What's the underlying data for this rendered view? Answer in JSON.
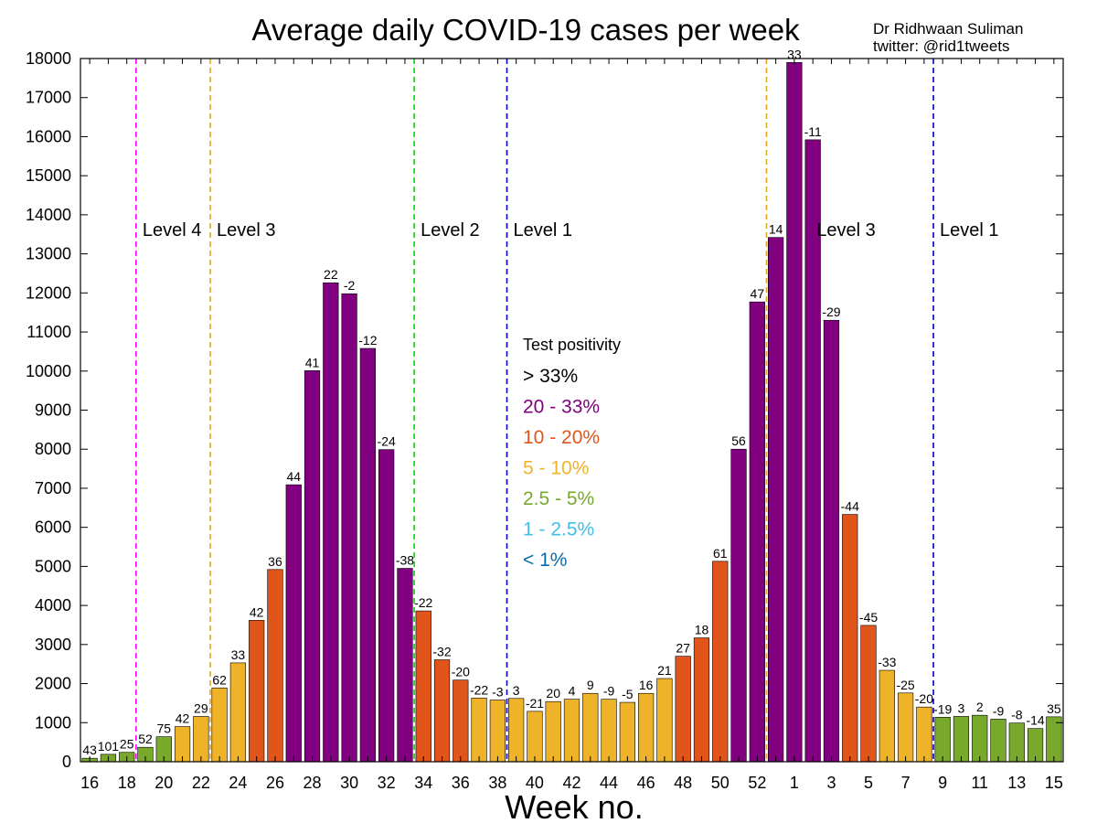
{
  "chart_data": {
    "type": "bar",
    "title": "Average daily COVID-19 cases per week",
    "credit_line1": "Dr Ridhwaan Suliman",
    "credit_line2": "twitter: @rid1tweets",
    "xlabel": "Week no.",
    "ylabel": "",
    "ylim": [
      0,
      18000
    ],
    "yticks": [
      0,
      1000,
      2000,
      3000,
      4000,
      5000,
      6000,
      7000,
      8000,
      9000,
      10000,
      11000,
      12000,
      13000,
      14000,
      15000,
      16000,
      17000,
      18000
    ],
    "grid": false,
    "categories": [
      "16",
      "17",
      "18",
      "19",
      "20",
      "21",
      "22",
      "23",
      "24",
      "25",
      "26",
      "27",
      "28",
      "29",
      "30",
      "31",
      "32",
      "33",
      "34",
      "35",
      "36",
      "37",
      "38",
      "39",
      "40",
      "41",
      "42",
      "43",
      "44",
      "45",
      "46",
      "47",
      "48",
      "49",
      "50",
      "51",
      "52",
      "53",
      "1",
      "2",
      "3",
      "4",
      "5",
      "6",
      "7",
      "8",
      "9",
      "10",
      "11",
      "12",
      "13",
      "14",
      "15"
    ],
    "xtick_labels": [
      "16",
      "18",
      "20",
      "22",
      "24",
      "26",
      "28",
      "30",
      "32",
      "34",
      "36",
      "38",
      "40",
      "42",
      "44",
      "46",
      "48",
      "50",
      "52",
      "1",
      "3",
      "5",
      "7",
      "9",
      "11",
      "13",
      "15"
    ],
    "values": [
      90,
      190,
      240,
      370,
      640,
      900,
      1160,
      1890,
      2530,
      3620,
      4920,
      7090,
      10010,
      12260,
      11980,
      10580,
      7990,
      4950,
      3860,
      2610,
      2090,
      1630,
      1580,
      1620,
      1290,
      1540,
      1600,
      1750,
      1600,
      1520,
      1750,
      2130,
      2700,
      3170,
      5130,
      8000,
      11770,
      13420,
      17900,
      15920,
      11300,
      6330,
      3490,
      2340,
      1760,
      1400,
      1140,
      1160,
      1190,
      1090,
      990,
      850,
      1150
    ],
    "pct_labels": [
      "43",
      "101",
      "25",
      "52",
      "75",
      "42",
      "29",
      "62",
      "33",
      "42",
      "36",
      "44",
      "41",
      "22",
      "-2",
      "-12",
      "-24",
      "-38",
      "-22",
      "-32",
      "-20",
      "-22",
      "-3",
      "3",
      "-21",
      "20",
      "4",
      "9",
      "-9",
      "-5",
      "16",
      "21",
      "27",
      "18",
      "61",
      "56",
      "47",
      "14",
      "33",
      "-11",
      "-29",
      "-44",
      "-45",
      "-33",
      "-25",
      "-20",
      "-19",
      "3",
      "2",
      "-9",
      "-8",
      "-14",
      "35"
    ],
    "bar_categories": [
      "2.5-5",
      "2.5-5",
      "2.5-5",
      "2.5-5",
      "2.5-5",
      "5-10",
      "5-10",
      "5-10",
      "5-10",
      "10-20",
      "10-20",
      "20-33",
      "20-33",
      "20-33",
      "20-33",
      "20-33",
      "20-33",
      "20-33",
      "10-20",
      "10-20",
      "10-20",
      "5-10",
      "5-10",
      "5-10",
      "5-10",
      "5-10",
      "5-10",
      "5-10",
      "5-10",
      "5-10",
      "5-10",
      "5-10",
      "10-20",
      "10-20",
      "10-20",
      "20-33",
      "20-33",
      "20-33",
      "20-33",
      "20-33",
      "20-33",
      "10-20",
      "10-20",
      "5-10",
      "5-10",
      "5-10",
      "2.5-5",
      "2.5-5",
      "2.5-5",
      "2.5-5",
      "2.5-5",
      "2.5-5",
      "2.5-5"
    ],
    "category_colors": {
      "gt-33": "#000000",
      "20-33": "#800080",
      "10-20": "#e0561a",
      "5-10": "#efb32a",
      "2.5-5": "#78a92d",
      "1-2.5": "#40c0e8",
      "lt-1": "#0a6aa8"
    },
    "level_lines": [
      {
        "after_index": 2.5,
        "label": "Level 4",
        "color": "#ff00ff"
      },
      {
        "after_index": 6.5,
        "label": "Level 3",
        "color": "#e6a520"
      },
      {
        "after_index": 17.5,
        "label": "Level 2",
        "color": "#00dd00"
      },
      {
        "after_index": 22.5,
        "label": "Level 1",
        "color": "#0000cc"
      },
      {
        "after_index": 36.5,
        "label": "",
        "color": "#e6a520"
      },
      {
        "after_index": 45.5,
        "label": "Level 1",
        "color": "#0000cc"
      }
    ],
    "level3_second_label": "Level 3",
    "legend": {
      "title": "Test positivity",
      "placement": "center",
      "items": [
        {
          "label": "> 33%",
          "color": "#000000"
        },
        {
          "label": "20 - 33%",
          "color": "#800080"
        },
        {
          "label": "10 - 20%",
          "color": "#e0561a"
        },
        {
          "label": "5 - 10%",
          "color": "#efb32a"
        },
        {
          "label": "2.5 - 5%",
          "color": "#78a92d"
        },
        {
          "label": "1 - 2.5%",
          "color": "#40c0e8"
        },
        {
          "label": "< 1%",
          "color": "#0a6aa8"
        }
      ]
    }
  }
}
